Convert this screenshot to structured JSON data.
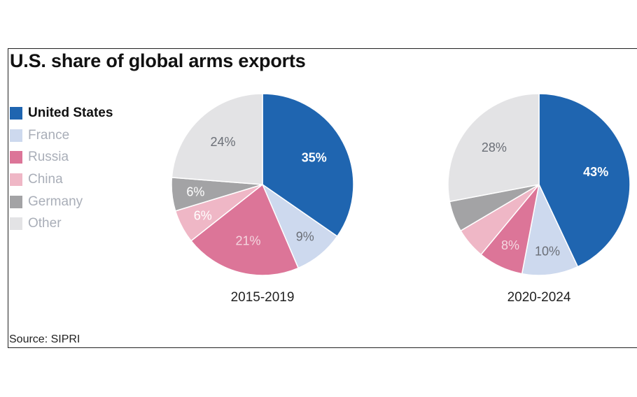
{
  "title": "U.S. share of global arms exports",
  "source": "Source: SIPRI",
  "legend": [
    {
      "label": "United States",
      "color": "#1f65b0",
      "text_color": "#111111",
      "bold": true
    },
    {
      "label": "France",
      "color": "#cdd9ee",
      "text_color": "#a9aeb8",
      "bold": false
    },
    {
      "label": "Russia",
      "color": "#dc7598",
      "text_color": "#a9aeb8",
      "bold": false
    },
    {
      "label": "China",
      "color": "#efb7c6",
      "text_color": "#a9aeb8",
      "bold": false
    },
    {
      "label": "Germany",
      "color": "#a3a3a5",
      "text_color": "#a9aeb8",
      "bold": false
    },
    {
      "label": "Other",
      "color": "#e3e3e5",
      "text_color": "#a9aeb8",
      "bold": false
    }
  ],
  "chart_data": [
    {
      "type": "pie",
      "label": "2015-2019",
      "slices": [
        {
          "name": "United States",
          "value": 35,
          "label": "35%"
        },
        {
          "name": "France",
          "value": 9,
          "label": "9%"
        },
        {
          "name": "Russia",
          "value": 21,
          "label": "21%"
        },
        {
          "name": "China",
          "value": 6,
          "label": "6%"
        },
        {
          "name": "Germany",
          "value": 6,
          "label": "6%"
        },
        {
          "name": "Other",
          "value": 24,
          "label": "24%"
        }
      ]
    },
    {
      "type": "pie",
      "label": "2020-2024",
      "slices": [
        {
          "name": "United States",
          "value": 43,
          "label": "43%"
        },
        {
          "name": "France",
          "value": 10,
          "label": "10%"
        },
        {
          "name": "Russia",
          "value": 8,
          "label": "8%"
        },
        {
          "name": "China",
          "value": 5.5,
          "label": ""
        },
        {
          "name": "Germany",
          "value": 5.5,
          "label": ""
        },
        {
          "name": "Other",
          "value": 28,
          "label": "28%"
        }
      ]
    }
  ]
}
